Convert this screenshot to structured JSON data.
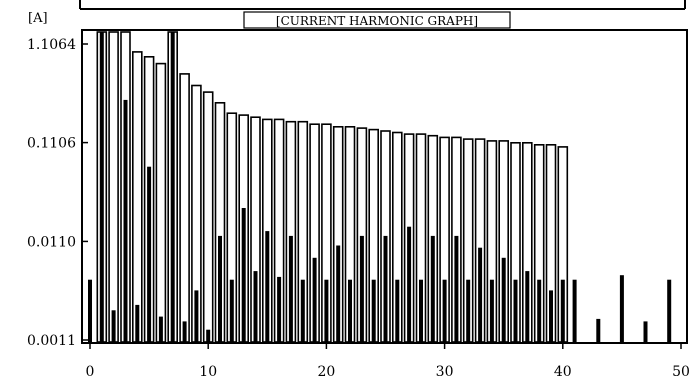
{
  "chart_data": {
    "type": "bar",
    "title": "[CURRENT HARMONIC GRAPH]",
    "ylabel": "[A]",
    "xlabel": "",
    "yscale": "log",
    "ylim": [
      0.0011,
      1.1064
    ],
    "y_ticks": [
      {
        "value": 0.0011,
        "label": "0.0011"
      },
      {
        "value": 0.011,
        "label": "0.0110"
      },
      {
        "value": 0.1106,
        "label": "0.1106"
      },
      {
        "value": 1.1064,
        "label": "1.1064"
      }
    ],
    "xlim": [
      0,
      50
    ],
    "x_ticks": [
      0,
      10,
      20,
      30,
      40,
      50
    ],
    "grid": false,
    "series": [
      {
        "style": "outline",
        "x": [
          1,
          2,
          3,
          4,
          5,
          6,
          7,
          8,
          9,
          10,
          11,
          12,
          13,
          14,
          15,
          16,
          17,
          18,
          19,
          20,
          21,
          22,
          23,
          24,
          25,
          26,
          27,
          28,
          29,
          30,
          31,
          32,
          33,
          34,
          35,
          36,
          37,
          38,
          39,
          40
        ],
        "values": [
          1.1064,
          1.1064,
          1.1064,
          0.92,
          0.82,
          0.7,
          1.1064,
          0.55,
          0.42,
          0.36,
          0.28,
          0.22,
          0.21,
          0.2,
          0.19,
          0.19,
          0.18,
          0.18,
          0.17,
          0.17,
          0.16,
          0.16,
          0.155,
          0.15,
          0.145,
          0.14,
          0.135,
          0.135,
          0.13,
          0.125,
          0.125,
          0.12,
          0.12,
          0.115,
          0.115,
          0.11,
          0.11,
          0.105,
          0.105,
          0.1
        ]
      },
      {
        "style": "filled",
        "x": [
          0,
          1,
          2,
          3,
          4,
          5,
          6,
          7,
          8,
          9,
          10,
          11,
          12,
          13,
          14,
          15,
          16,
          17,
          18,
          19,
          20,
          21,
          22,
          23,
          24,
          25,
          26,
          27,
          28,
          29,
          30,
          31,
          32,
          33,
          34,
          35,
          36,
          37,
          38,
          39,
          40,
          41,
          43,
          45,
          47,
          49
        ],
        "values": [
          0.0045,
          1.1064,
          0.0022,
          0.3,
          0.0025,
          0.063,
          0.0019,
          1.1064,
          0.0017,
          0.0035,
          0.0014,
          0.0125,
          0.0045,
          0.024,
          0.0055,
          0.014,
          0.0048,
          0.0125,
          0.0045,
          0.0075,
          0.0045,
          0.01,
          0.0045,
          0.0125,
          0.0045,
          0.0125,
          0.0045,
          0.0155,
          0.0045,
          0.0125,
          0.0045,
          0.0125,
          0.0045,
          0.0095,
          0.0045,
          0.0075,
          0.0045,
          0.0055,
          0.0045,
          0.0035,
          0.0045,
          0.0045,
          0.0018,
          0.005,
          0.0017,
          0.0045
        ]
      }
    ]
  }
}
